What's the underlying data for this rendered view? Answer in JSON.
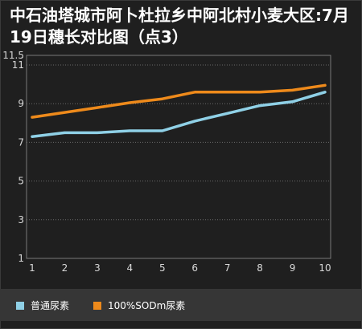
{
  "chart_data": {
    "type": "line",
    "title": "中石油塔城市阿卜杜拉乡中阿北村小麦大区:7月19日穗长对比图（点3）",
    "x": [
      1,
      2,
      3,
      4,
      5,
      6,
      7,
      8,
      9,
      10
    ],
    "x_ticks": [
      "1",
      "2",
      "3",
      "4",
      "5",
      "6",
      "7",
      "8",
      "9",
      "10"
    ],
    "y_ticks": [
      "1",
      "3",
      "5",
      "7",
      "9",
      "11",
      "11.5"
    ],
    "ylim": [
      1,
      11.5
    ],
    "grid": true,
    "legend_position": "bottom-left",
    "series": [
      {
        "name": "普通尿素",
        "color": "#8fd0e6",
        "values": [
          7.3,
          7.5,
          7.5,
          7.6,
          7.6,
          8.1,
          8.5,
          8.9,
          9.1,
          9.6
        ]
      },
      {
        "name": "100%SODm尿素",
        "color": "#ee8a1b",
        "values": [
          8.3,
          8.55,
          8.8,
          9.05,
          9.25,
          9.6,
          9.6,
          9.6,
          9.7,
          9.95
        ]
      }
    ]
  }
}
